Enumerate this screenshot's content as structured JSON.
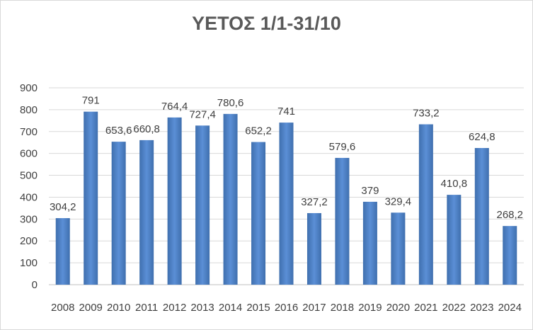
{
  "chart_data": {
    "type": "bar",
    "title": "ΥΕΤΟΣ 1/1-31/10",
    "xlabel": "",
    "ylabel": "",
    "ylim": [
      0,
      900
    ],
    "yticks": [
      "0",
      "100",
      "200",
      "300",
      "400",
      "500",
      "600",
      "700",
      "800",
      "900"
    ],
    "grid": true,
    "legend": "none",
    "bar_color": "#4f81bd",
    "categories": [
      "2008",
      "2009",
      "2010",
      "2011",
      "2012",
      "2013",
      "2014",
      "2015",
      "2016",
      "2017",
      "2018",
      "2019",
      "2020",
      "2021",
      "2022",
      "2023",
      "2024"
    ],
    "values": [
      304.2,
      791,
      653.6,
      660.8,
      764.4,
      727.4,
      780.6,
      652.2,
      741,
      327.2,
      579.6,
      379,
      329.4,
      733.2,
      410.8,
      624.8,
      268.2
    ],
    "data_labels": [
      "304,2",
      "791",
      "653,6",
      "660,8",
      "764,4",
      "727,4",
      "780,6",
      "652,2",
      "741",
      "327,2",
      "579,6",
      "379",
      "329,4",
      "733,2",
      "410,8",
      "624,8",
      "268,2"
    ]
  }
}
